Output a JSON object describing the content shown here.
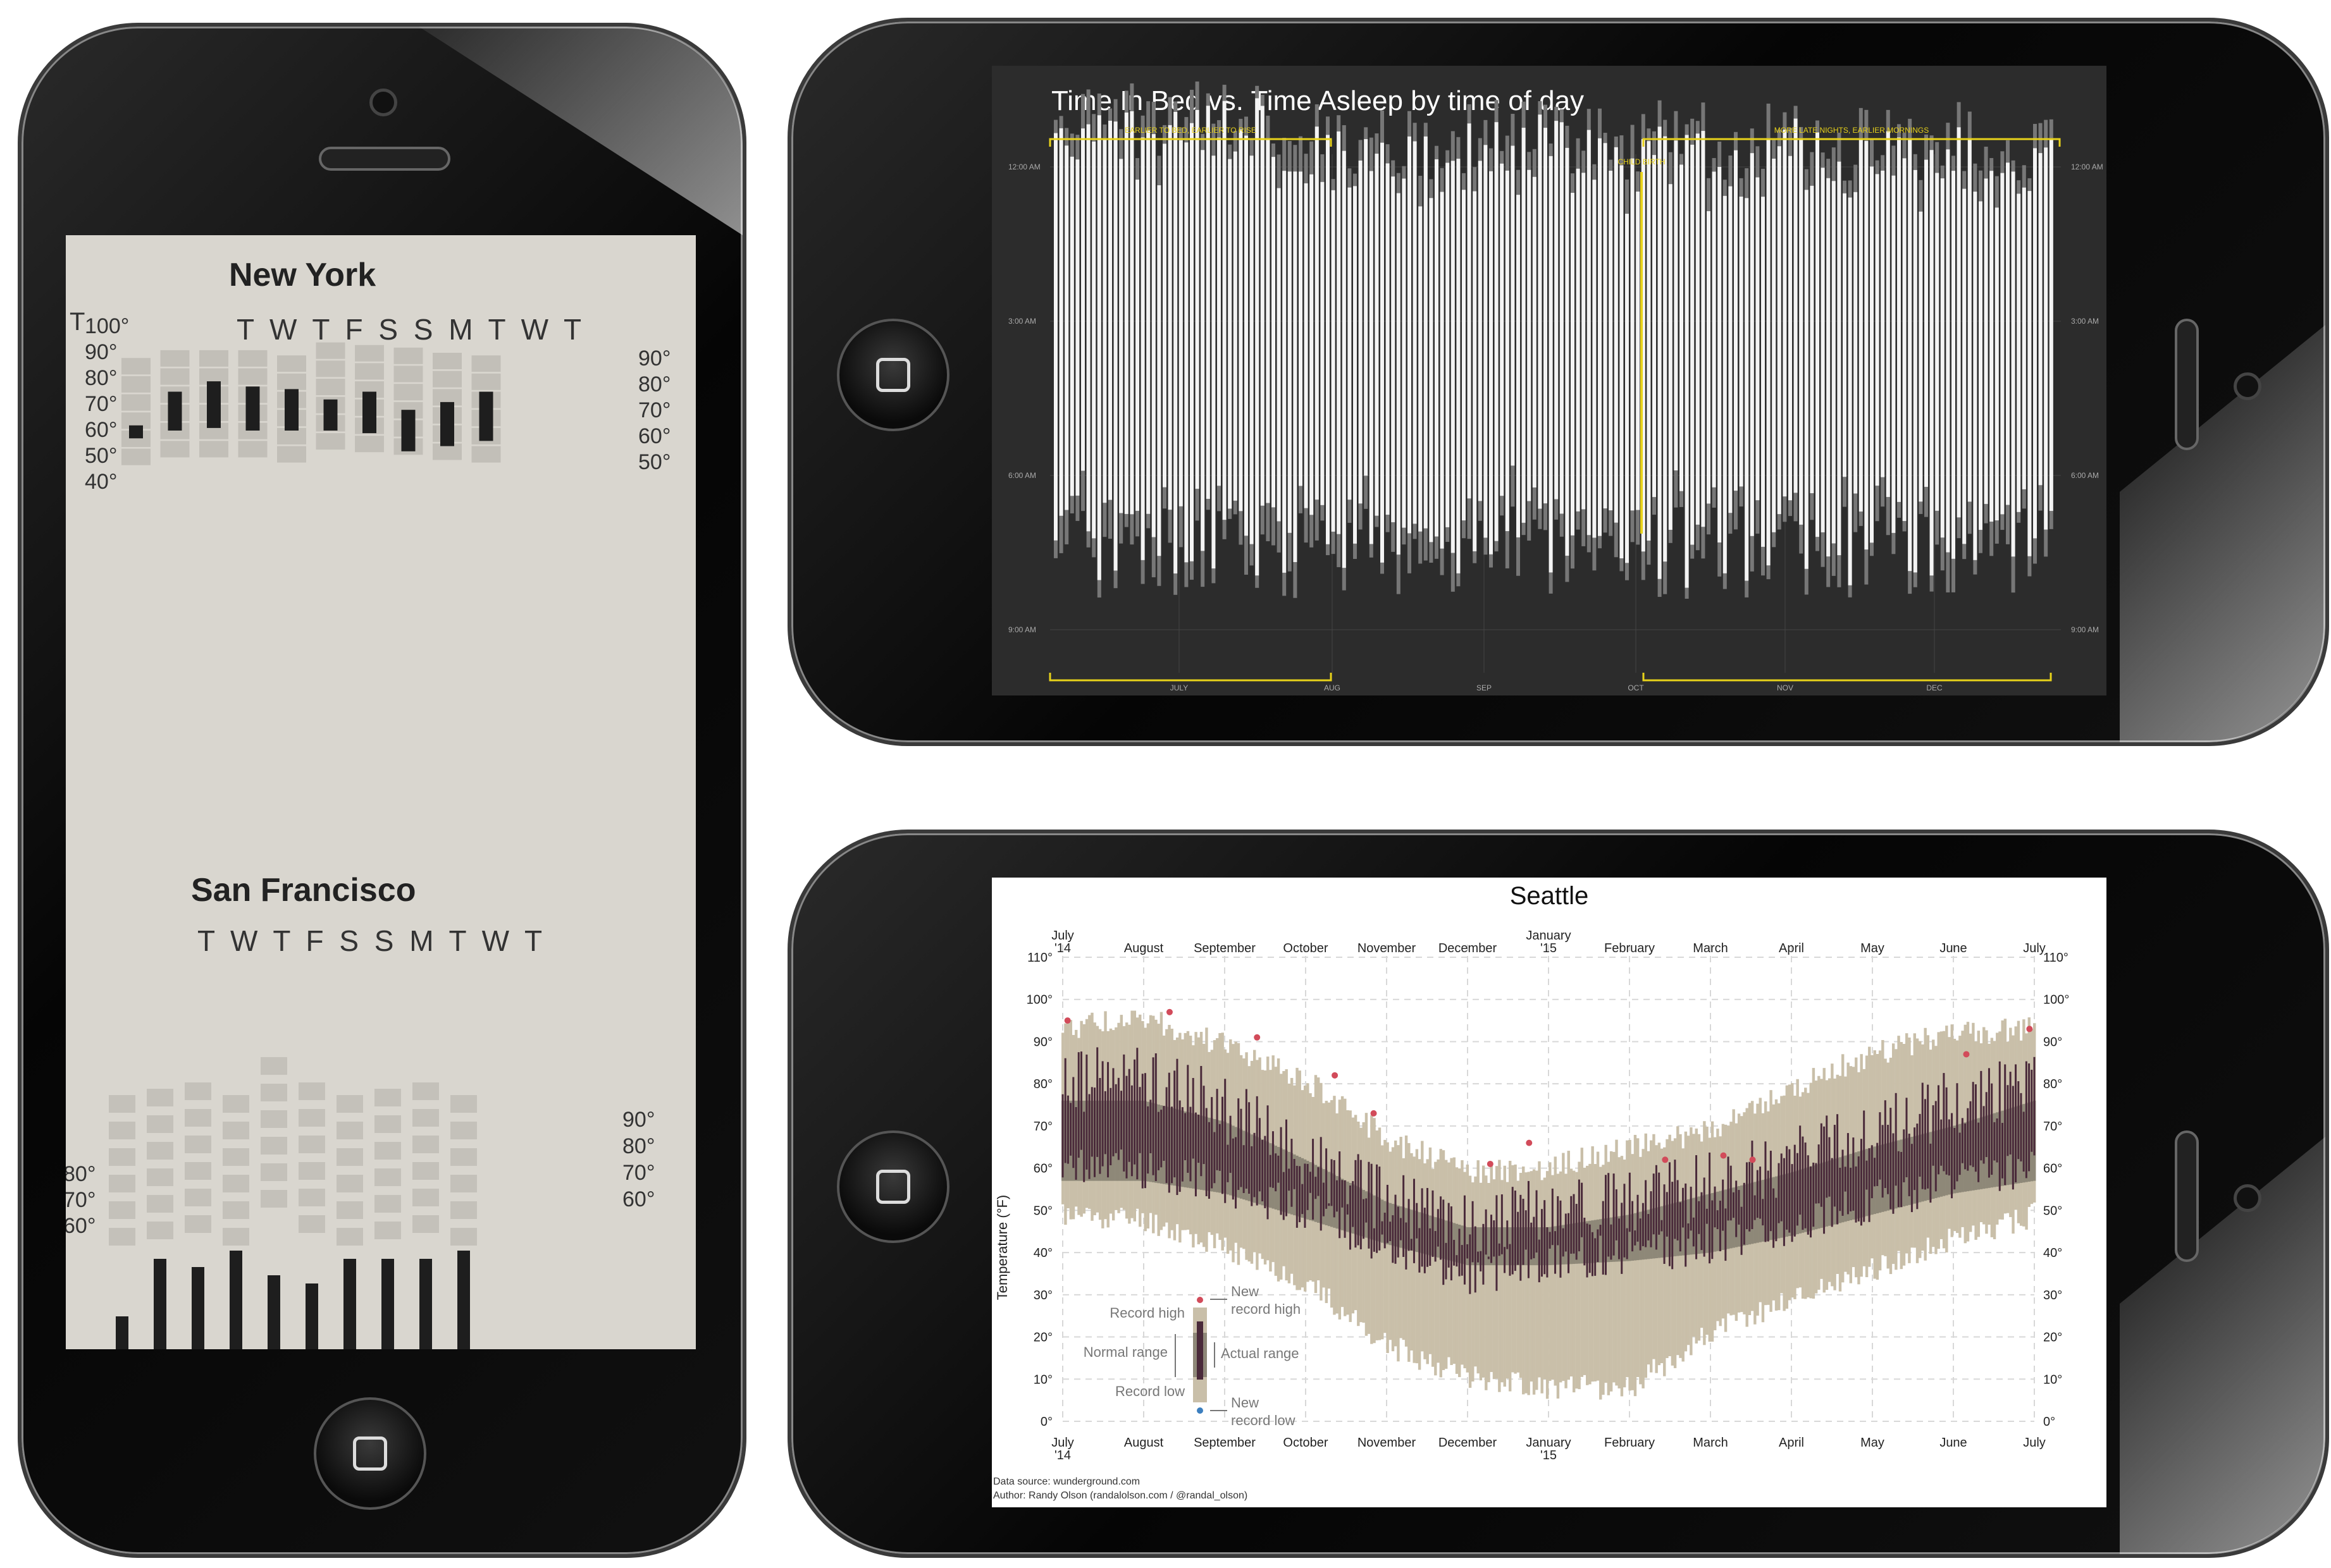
{
  "newspaper": {
    "ny_title": "New York",
    "sf_title": "San Francisco",
    "days": "T W T F S S M T W T",
    "edge_letter": "T",
    "ny_left_ticks": [
      "100°",
      "90°",
      "80°",
      "70°",
      "60°",
      "50°",
      "40°"
    ],
    "ny_right_ticks": [
      "90°",
      "80°",
      "70°",
      "60°",
      "50°"
    ],
    "sf_left_ticks": [
      "80°",
      "70°",
      "60°"
    ],
    "sf_right_ticks": [
      "90°",
      "80°",
      "70°",
      "60°"
    ],
    "ny_days": [
      {
        "low": 57,
        "high": 62,
        "nlow": 52,
        "nhigh": 88
      },
      {
        "low": 60,
        "high": 75,
        "nlow": 50,
        "nhigh": 91
      },
      {
        "low": 61,
        "high": 79,
        "nlow": 48,
        "nhigh": 91
      },
      {
        "low": 60,
        "high": 77,
        "nlow": 50,
        "nhigh": 91
      },
      {
        "low": 60,
        "high": 76,
        "nlow": 51,
        "nhigh": 89
      },
      {
        "low": 60,
        "high": 72,
        "nlow": 54,
        "nhigh": 94
      },
      {
        "low": 59,
        "high": 75,
        "nlow": 55,
        "nhigh": 93
      },
      {
        "low": 52,
        "high": 68,
        "nlow": 54,
        "nhigh": 92
      },
      {
        "low": 54,
        "high": 71,
        "nlow": 53,
        "nhigh": 90
      },
      {
        "low": 56,
        "high": 75,
        "nlow": 52,
        "nhigh": 89
      }
    ],
    "sf_days": [
      {
        "low": 60,
        "high": 63
      },
      {
        "low": 61,
        "high": 70
      },
      {
        "low": 61,
        "high": 69
      },
      {
        "low": 61,
        "high": 71
      },
      {
        "low": 60,
        "high": 68
      },
      {
        "low": 60,
        "high": 67
      },
      {
        "low": 60,
        "high": 70
      },
      {
        "low": 60,
        "high": 70
      },
      {
        "low": 60,
        "high": 70
      },
      {
        "low": 61,
        "high": 71
      }
    ]
  },
  "sleep": {
    "title": "Time In Bed vs. Time Asleep by time of day",
    "annotations": {
      "earlier": "EARLIER TO BED, EARLIER TO RISE",
      "later": "MORE LATE NIGHTS, EARLIER MORNINGS",
      "birth": "CHILD BIRTH"
    },
    "y_ticks": [
      "12:00 AM",
      "3:00 AM",
      "6:00 AM",
      "9:00 AM"
    ],
    "months": [
      "JULY",
      "AUG",
      "SEP",
      "OCT",
      "NOV",
      "DEC"
    ]
  },
  "seattle": {
    "title": "Seattle",
    "ylabel": "Temperature (°F)",
    "y_ticks": [
      "110°",
      "100°",
      "90°",
      "80°",
      "70°",
      "60°",
      "50°",
      "40°",
      "30°",
      "20°",
      "10°",
      "0°"
    ],
    "months_top": [
      "July\n'14",
      "August",
      "September",
      "October",
      "November",
      "December",
      "January\n'15",
      "February",
      "March",
      "April",
      "May",
      "June",
      "July"
    ],
    "legend": {
      "record_high": "Record high",
      "normal_range": "Normal range",
      "record_low": "Record low",
      "new_record_high": "New record high",
      "actual_range": "Actual range",
      "new_record_low": "New record low"
    },
    "source": "Data source: wunderground.com",
    "author": "Author: Randy Olson (randalolson.com / @randal_olson)"
  },
  "chart_data": [
    {
      "type": "bar",
      "title": "New York",
      "categories": [
        "T",
        "W",
        "T",
        "F",
        "S",
        "S",
        "M",
        "T",
        "W",
        "T"
      ],
      "series": [
        {
          "name": "low",
          "values": [
            57,
            60,
            61,
            60,
            60,
            60,
            59,
            52,
            54,
            56
          ]
        },
        {
          "name": "high",
          "values": [
            62,
            75,
            79,
            77,
            76,
            72,
            75,
            68,
            71,
            75
          ]
        }
      ],
      "ylim": [
        40,
        100
      ]
    },
    {
      "type": "bar",
      "title": "San Francisco",
      "categories": [
        "T",
        "W",
        "T",
        "F",
        "S",
        "S",
        "M",
        "T",
        "W",
        "T"
      ],
      "series": [
        {
          "name": "low",
          "values": [
            60,
            61,
            61,
            61,
            60,
            60,
            60,
            60,
            60,
            61
          ]
        },
        {
          "name": "high",
          "values": [
            63,
            70,
            69,
            71,
            68,
            67,
            70,
            70,
            70,
            71
          ]
        }
      ]
    },
    {
      "type": "bar",
      "title": "Time In Bed vs. Time Asleep by time of day",
      "categories": [
        "JULY",
        "AUG",
        "SEP",
        "OCT",
        "NOV",
        "DEC"
      ],
      "ylim": [
        "12:00 AM",
        "9:00 AM"
      ]
    },
    {
      "type": "bar",
      "title": "Seattle",
      "ylabel": "Temperature (°F)",
      "ylim": [
        0,
        110
      ],
      "categories": [
        "July '14",
        "August",
        "September",
        "October",
        "November",
        "December",
        "January '15",
        "February",
        "March",
        "April",
        "May",
        "June",
        "July"
      ],
      "series": [
        {
          "name": "Normal range",
          "low": [
            57,
            57,
            54,
            48,
            42,
            37,
            37,
            38,
            40,
            44,
            49,
            54,
            57
          ],
          "high": [
            76,
            76,
            71,
            62,
            52,
            46,
            46,
            49,
            54,
            59,
            65,
            70,
            76
          ]
        },
        {
          "name": "Actual range",
          "low": [
            60,
            60,
            56,
            50,
            42,
            34,
            38,
            40,
            42,
            47,
            52,
            57,
            60
          ],
          "high": [
            80,
            82,
            74,
            62,
            52,
            46,
            50,
            52,
            56,
            62,
            68,
            76,
            80
          ]
        },
        {
          "name": "Record high",
          "values": [
            96,
            99,
            92,
            84,
            70,
            62,
            63,
            68,
            72,
            82,
            90,
            95,
            96
          ]
        },
        {
          "name": "Record low",
          "values": [
            46,
            45,
            38,
            30,
            15,
            8,
            5,
            5,
            18,
            26,
            33,
            40,
            46
          ]
        }
      ]
    }
  ]
}
